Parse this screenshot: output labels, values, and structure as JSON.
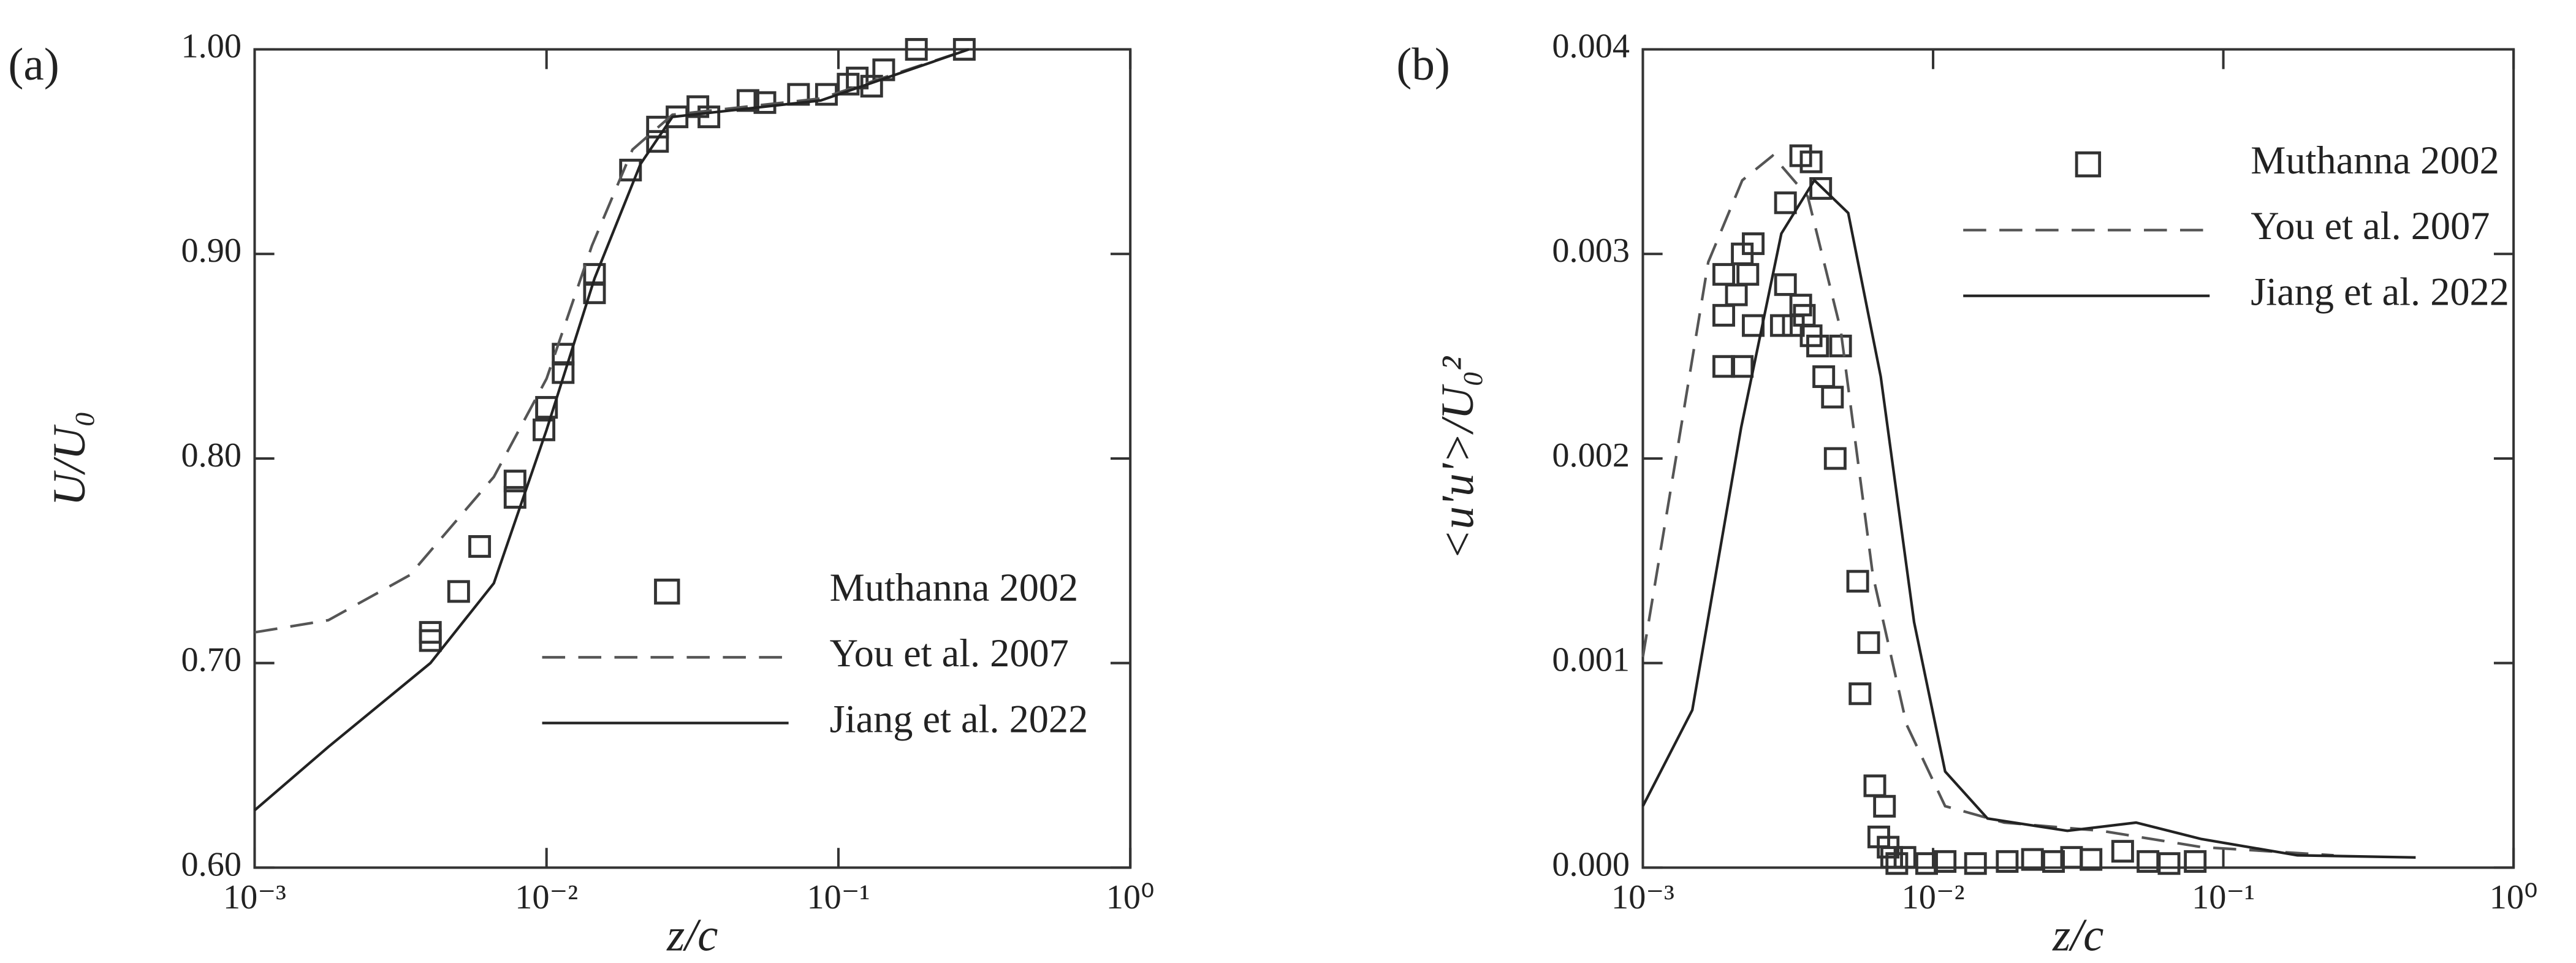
{
  "chart_data": [
    {
      "type": "line",
      "panel_label": "(a)",
      "xlabel": "z/c",
      "ylabel": "U/U₀",
      "xscale": "log",
      "legend": "lower right",
      "xlim": [
        0.001,
        1
      ],
      "xticks": [
        {
          "value": 0.001,
          "label": "10⁻³"
        },
        {
          "value": 0.01,
          "label": "10⁻²"
        },
        {
          "value": 0.1,
          "label": "10⁻¹"
        },
        {
          "value": 1,
          "label": "10⁰"
        }
      ],
      "ylim": [
        0.6,
        1.0
      ],
      "yticks": [
        {
          "value": 0.6,
          "label": "0.60"
        },
        {
          "value": 0.7,
          "label": "0.70"
        },
        {
          "value": 0.8,
          "label": "0.80"
        },
        {
          "value": 0.9,
          "label": "0.90"
        },
        {
          "value": 1.0,
          "label": "1.00"
        }
      ],
      "series": [
        {
          "name": "Muthanna 2002",
          "color": "#333333",
          "marker": "square",
          "x": [
            0.004,
            0.004,
            0.005,
            0.0059,
            0.0078,
            0.0078,
            0.01,
            0.0098,
            0.0114,
            0.0114,
            0.0146,
            0.0146,
            0.0194,
            0.024,
            0.024,
            0.028,
            0.033,
            0.036,
            0.049,
            0.056,
            0.073,
            0.091,
            0.108,
            0.116,
            0.13,
            0.143,
            0.185,
            0.27
          ],
          "values": [
            0.711,
            0.715,
            0.735,
            0.757,
            0.789,
            0.781,
            0.825,
            0.814,
            0.851,
            0.842,
            0.89,
            0.881,
            0.941,
            0.962,
            0.955,
            0.967,
            0.972,
            0.967,
            0.975,
            0.974,
            0.978,
            0.978,
            0.983,
            0.986,
            0.982,
            0.99,
            1.0,
            1.0
          ]
        },
        {
          "name": "You et al. 2007",
          "color": "#555555",
          "dash": "dashed",
          "x": [
            0.001,
            0.00179,
            0.0034,
            0.0066,
            0.01,
            0.0143,
            0.0197,
            0.027,
            0.087,
            0.28
          ],
          "values": [
            0.715,
            0.721,
            0.743,
            0.791,
            0.839,
            0.904,
            0.951,
            0.968,
            0.976,
            1.0
          ]
        },
        {
          "name": "Jiang et al. 2022",
          "color": "#222222",
          "dash": "solid",
          "x": [
            0.001,
            0.00179,
            0.004,
            0.0066,
            0.01,
            0.0146,
            0.021,
            0.027,
            0.087,
            0.28
          ],
          "values": [
            0.628,
            0.659,
            0.7,
            0.739,
            0.814,
            0.888,
            0.944,
            0.967,
            0.975,
            1.0
          ]
        }
      ]
    },
    {
      "type": "line",
      "panel_label": "(b)",
      "xlabel": "z/c",
      "ylabel": "<u'u'>/U₀²",
      "xscale": "log",
      "legend": "upper right",
      "xlim": [
        0.001,
        1
      ],
      "xticks": [
        {
          "value": 0.001,
          "label": "10⁻³"
        },
        {
          "value": 0.01,
          "label": "10⁻²"
        },
        {
          "value": 0.1,
          "label": "10⁻¹"
        },
        {
          "value": 1,
          "label": "10⁰"
        }
      ],
      "ylim": [
        0,
        0.004
      ],
      "yticks": [
        {
          "value": 0,
          "label": "0.000"
        },
        {
          "value": 0.001,
          "label": "0.001"
        },
        {
          "value": 0.002,
          "label": "0.002"
        },
        {
          "value": 0.003,
          "label": "0.003"
        },
        {
          "value": 0.004,
          "label": "0.004"
        }
      ],
      "series": [
        {
          "name": "Muthanna 2002",
          "color": "#333333",
          "marker": "square",
          "x": [
            0.0019,
            0.0019,
            0.0019,
            0.0021,
            0.0022,
            0.0022,
            0.0023,
            0.0024,
            0.0024,
            0.003,
            0.0031,
            0.0031,
            0.0033,
            0.0035,
            0.0035,
            0.0036,
            0.0038,
            0.0038,
            0.004,
            0.0041,
            0.0042,
            0.0045,
            0.0046,
            0.0048,
            0.0055,
            0.0056,
            0.006,
            0.0063,
            0.0065,
            0.0068,
            0.007,
            0.0072,
            0.0075,
            0.008,
            0.0095,
            0.011,
            0.014,
            0.018,
            0.022,
            0.026,
            0.03,
            0.035,
            0.045,
            0.055,
            0.065,
            0.08
          ],
          "values": [
            0.0029,
            0.0027,
            0.00245,
            0.0028,
            0.00245,
            0.003,
            0.0029,
            0.00305,
            0.00265,
            0.00265,
            0.00325,
            0.00285,
            0.00265,
            0.00348,
            0.00275,
            0.0027,
            0.00345,
            0.0026,
            0.00255,
            0.00332,
            0.0024,
            0.0023,
            0.002,
            0.00255,
            0.0014,
            0.00085,
            0.0011,
            0.0004,
            0.00015,
            0.0003,
            0.0001,
            5e-05,
            2e-05,
            5e-05,
            2e-05,
            3e-05,
            2e-05,
            3e-05,
            4e-05,
            3e-05,
            5e-05,
            4e-05,
            8e-05,
            3e-05,
            2e-05,
            3e-05
          ]
        },
        {
          "name": "You et al. 2007",
          "color": "#555555",
          "dash": "dashed",
          "x": [
            0.001,
            0.0013,
            0.00168,
            0.0022,
            0.0028,
            0.0037,
            0.0048,
            0.0062,
            0.0081,
            0.011,
            0.0176,
            0.038,
            0.084,
            0.24
          ],
          "values": [
            0.00103,
            0.002,
            0.00296,
            0.00336,
            0.00348,
            0.00328,
            0.00263,
            0.00143,
            0.0007,
            0.0003,
            0.00022,
            0.00018,
            0.0001,
            6e-05
          ]
        },
        {
          "name": "Jiang et al. 2022",
          "color": "#222222",
          "dash": "solid",
          "x": [
            0.001,
            0.00148,
            0.00218,
            0.003,
            0.0039,
            0.0051,
            0.0066,
            0.0086,
            0.011,
            0.0154,
            0.029,
            0.05,
            0.084,
            0.18,
            0.46
          ],
          "values": [
            0.0003,
            0.00077,
            0.00215,
            0.0031,
            0.00336,
            0.0032,
            0.0024,
            0.0012,
            0.00047,
            0.00024,
            0.00018,
            0.00022,
            0.00014,
            6e-05,
            5e-05
          ]
        }
      ]
    }
  ]
}
